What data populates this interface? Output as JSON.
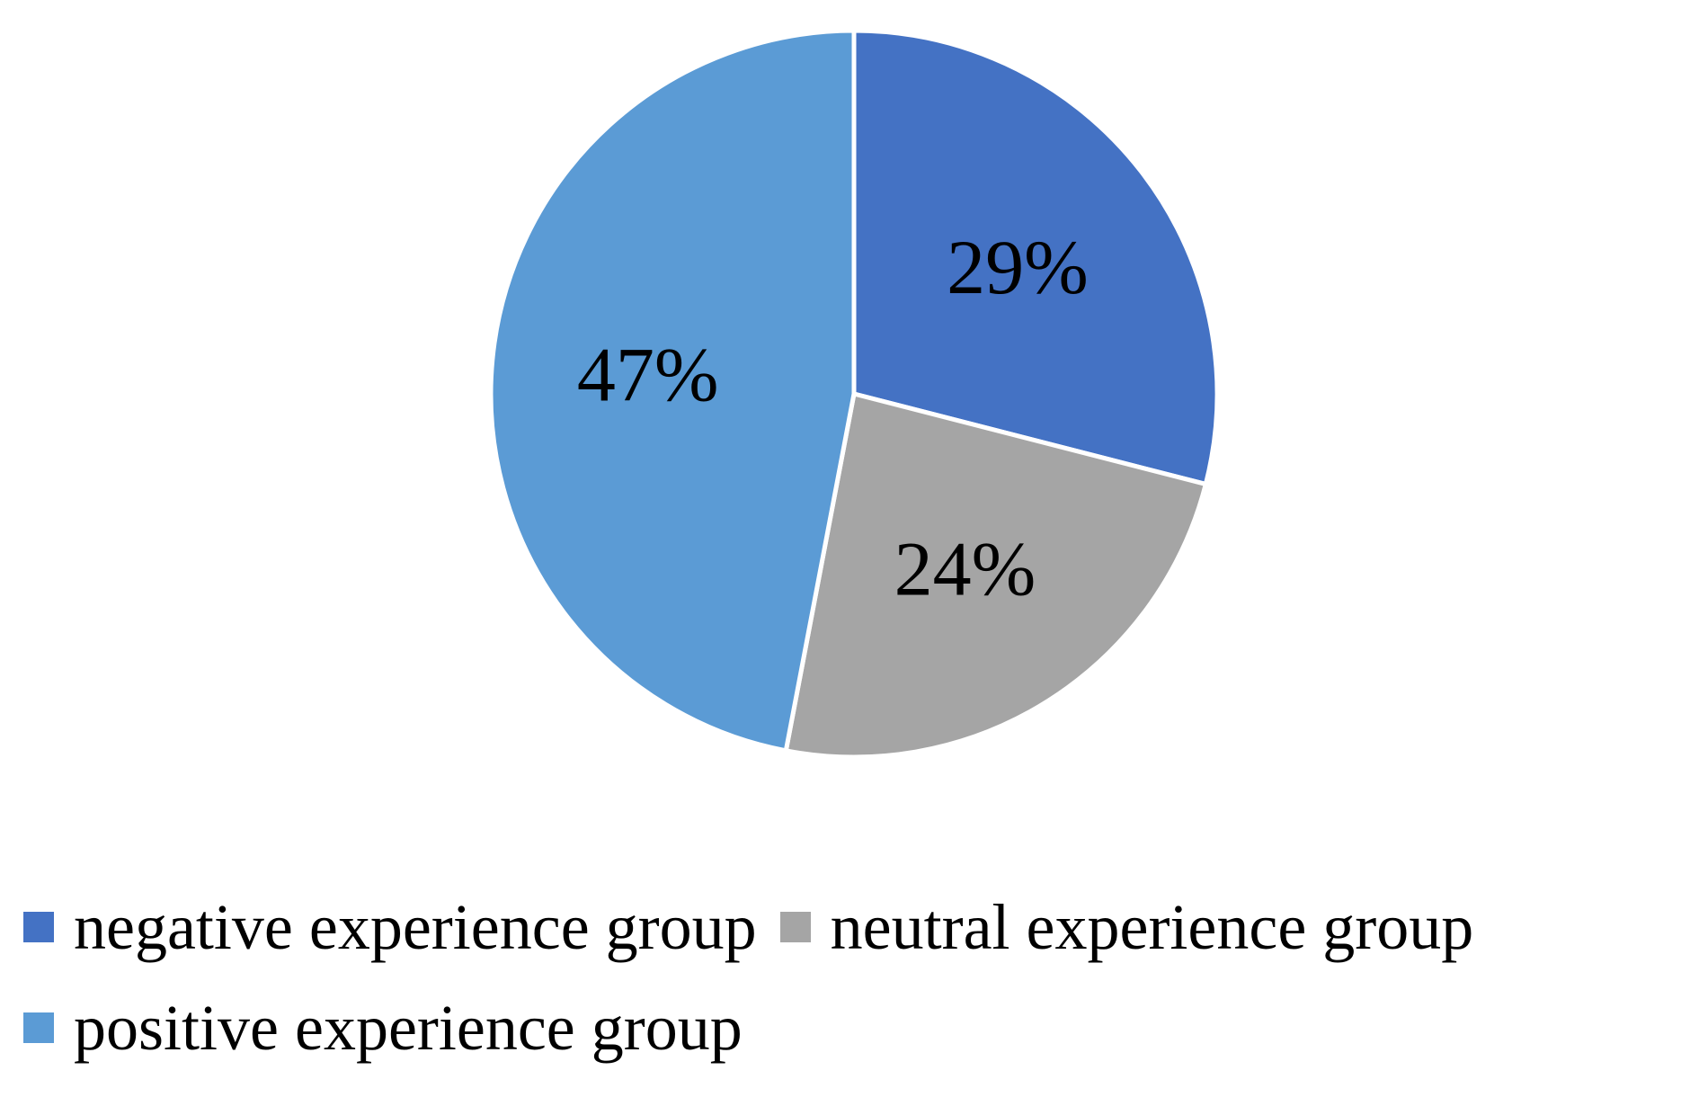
{
  "chart_data": {
    "type": "pie",
    "categories": [
      "negative experience group",
      "neutral experience group",
      "positive experience group"
    ],
    "values": [
      29,
      24,
      47
    ],
    "labels": [
      "29%",
      "24%",
      "47%"
    ],
    "colors": [
      "#4472C4",
      "#A5A5A5",
      "#5B9BD5"
    ],
    "start_angle_deg": 0,
    "direction": "clockwise",
    "legend_position": "bottom"
  }
}
